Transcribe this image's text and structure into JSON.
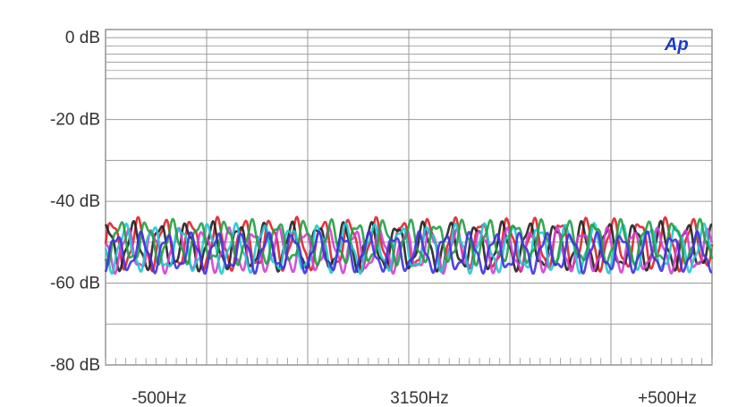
{
  "chart_data": {
    "type": "line",
    "title": "",
    "xlabel": "",
    "ylabel": "",
    "logo_text": "Ap",
    "x_categories": [
      "-500Hz",
      "3150Hz",
      "+500Hz"
    ],
    "x_range": [
      -500,
      500
    ],
    "x_unit_note": "offset from 3150Hz",
    "y_ticks": [
      0,
      -20,
      -40,
      -60,
      -80
    ],
    "y_tick_labels": [
      "0 dB",
      "-20 dB",
      "-40 dB",
      "-60 dB",
      "-80 dB"
    ],
    "ylim": [
      -80,
      2
    ],
    "grid": true,
    "legend": "none",
    "series": [
      {
        "color": "#e0202a",
        "center": -50.5,
        "amplitude": 5.5,
        "cycles": 23,
        "phase": 0.0
      },
      {
        "color": "#202020",
        "center": -51.0,
        "amplitude": 5.0,
        "cycles": 23,
        "phase": 1.2
      },
      {
        "color": "#d040d0",
        "center": -52.0,
        "amplitude": 4.5,
        "cycles": 24,
        "phase": 2.4
      },
      {
        "color": "#20c8d0",
        "center": -51.5,
        "amplitude": 5.0,
        "cycles": 22,
        "phase": 3.3
      },
      {
        "color": "#20a040",
        "center": -50.0,
        "amplitude": 4.5,
        "cycles": 23,
        "phase": 4.4
      },
      {
        "color": "#4030e0",
        "center": -52.5,
        "amplitude": 4.0,
        "cycles": 24,
        "phase": 5.2
      }
    ],
    "colors": {
      "logo": "#1a3cc8",
      "grid": "#9a9a9a",
      "frame": "#7a7a7a"
    }
  }
}
